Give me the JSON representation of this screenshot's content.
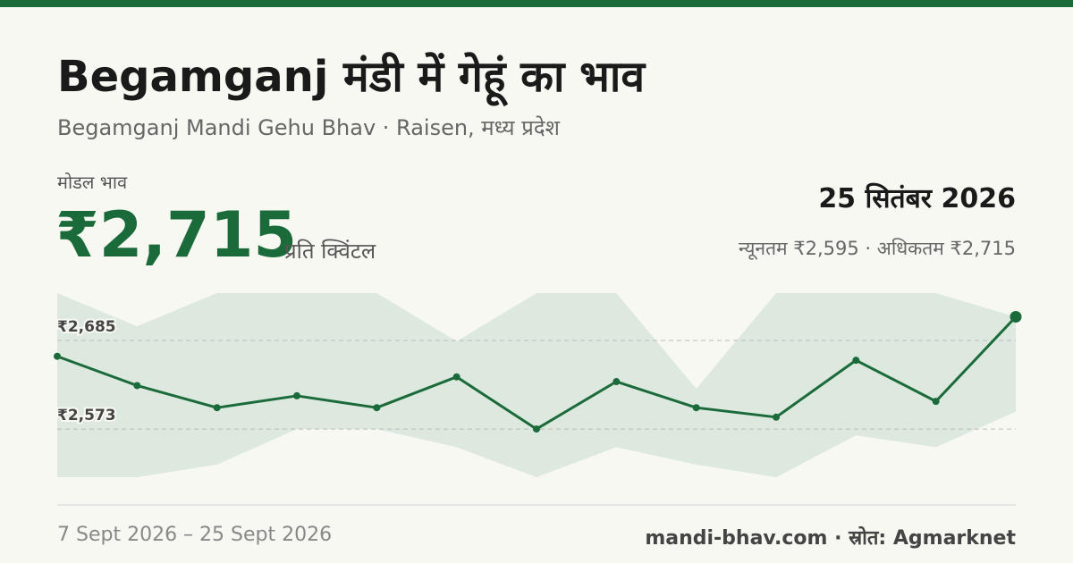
{
  "header": {
    "title": "Begamganj मंडी में गेहूं का भाव",
    "subtitle": "Begamganj Mandi Gehu Bhav · Raisen, मध्य प्रदेश"
  },
  "price": {
    "label": "मोडल भाव",
    "value": "₹2,715",
    "unit": "प्रति क्विंटल",
    "date": "25 सितंबर 2026",
    "summary": "न्यूनतम ₹2,595 · अधिकतम ₹2,715"
  },
  "chart_data": {
    "type": "line",
    "categories": [
      null,
      null,
      null,
      null,
      null,
      null,
      null,
      null,
      null,
      null,
      null,
      null,
      null
    ],
    "values": [
      2665,
      2628,
      2600,
      2615,
      2600,
      2639,
      2573,
      2633,
      2600,
      2588,
      2660,
      2608,
      2715
    ],
    "max_values": [
      2745,
      2703,
      2745,
      2745,
      2745,
      2684,
      2745,
      2745,
      2624,
      2745,
      2745,
      2745,
      2715
    ],
    "min_values": [
      2512,
      2512,
      2528,
      2573,
      2573,
      2550,
      2512,
      2550,
      2528,
      2512,
      2565,
      2550,
      2595
    ],
    "color": "#1b6b3a",
    "band_color": "#dde8df",
    "ylim": [
      2512,
      2745
    ],
    "yticks": [
      {
        "value": 2685,
        "label": "₹2,685"
      },
      {
        "value": 2573,
        "label": "₹2,573"
      }
    ],
    "grid": true
  },
  "footer": {
    "range": "7 Sept 2026 – 25 Sept 2026",
    "source": "mandi-bhav.com · स्रोत: Agmarknet"
  }
}
